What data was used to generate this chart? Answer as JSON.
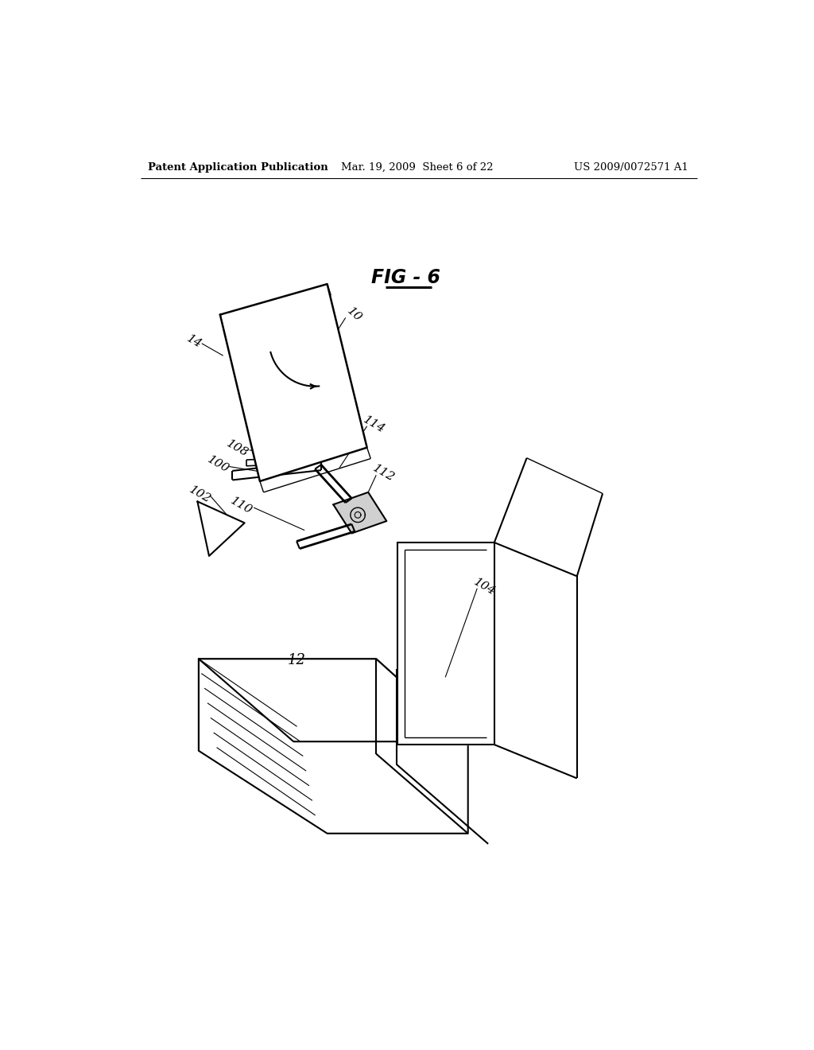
{
  "header_left": "Patent Application Publication",
  "header_mid": "Mar. 19, 2009  Sheet 6 of 22",
  "header_right": "US 2009/0072571 A1",
  "fig_label": "FIG - 6",
  "background_color": "#ffffff",
  "line_color": "#000000"
}
